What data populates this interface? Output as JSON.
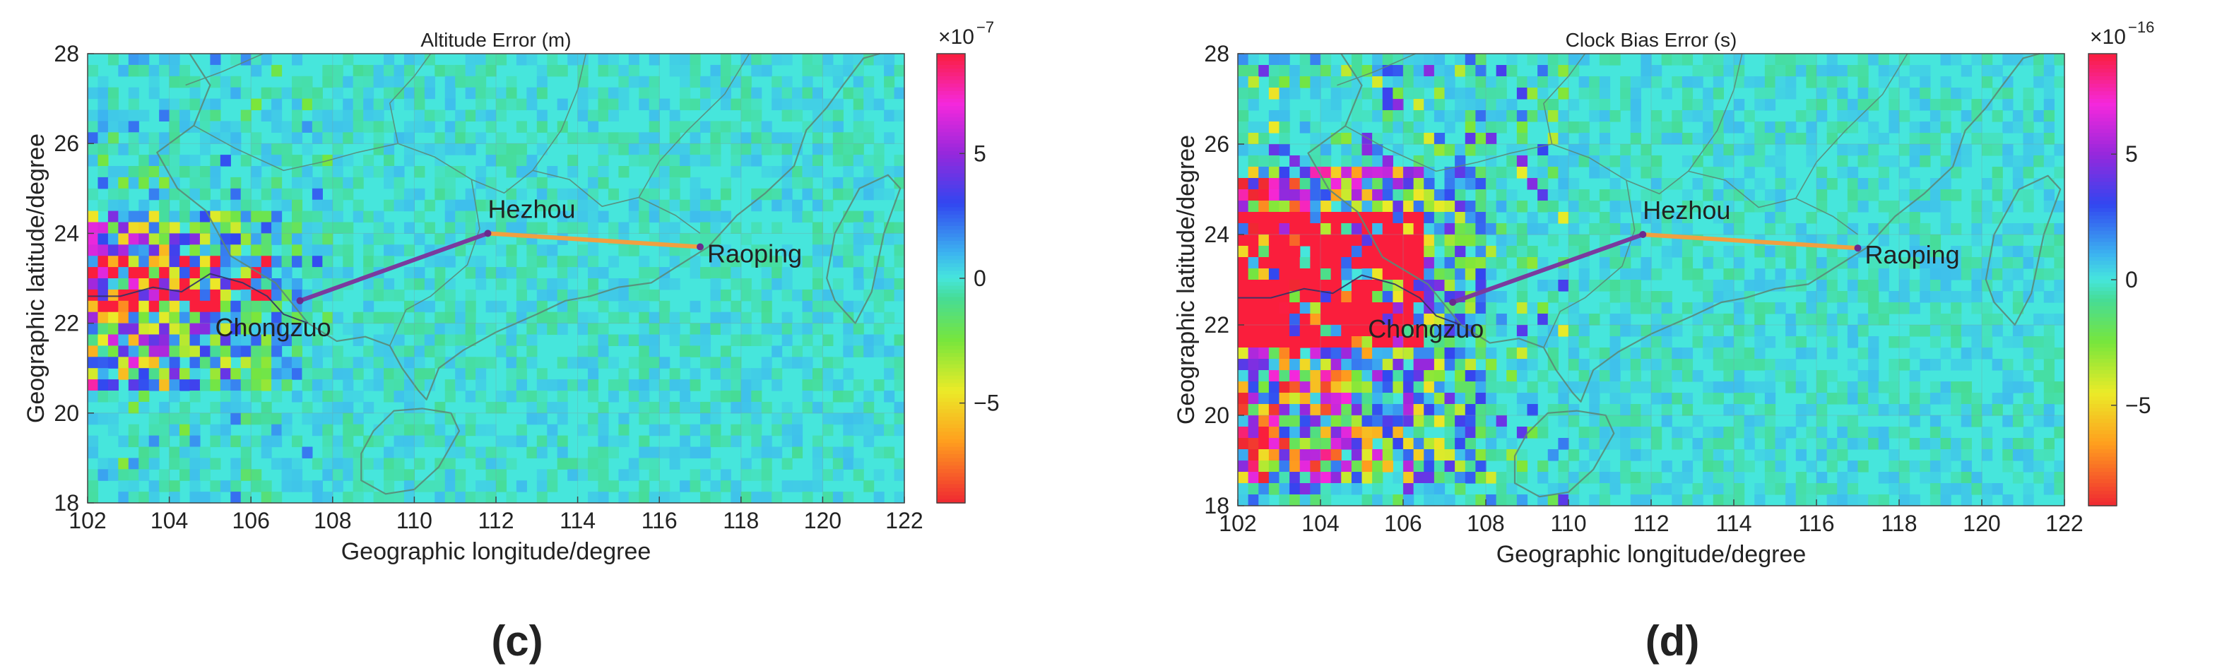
{
  "chart_data": [
    {
      "type": "heatmap",
      "panel_label": "(c)",
      "title": "Altitude Error (m)",
      "xlabel": "Geographic longitude/degree",
      "ylabel": "Geographic latitude/degree",
      "xlim": [
        102,
        122
      ],
      "ylim": [
        18,
        28
      ],
      "xticks": [
        102,
        104,
        106,
        108,
        110,
        112,
        114,
        116,
        118,
        120,
        122
      ],
      "yticks": [
        18,
        20,
        22,
        24,
        26,
        28
      ],
      "grid": true,
      "colorbar": {
        "exponent_label": "×10",
        "exponent_power": "−7",
        "range": [
          -9,
          9
        ],
        "ticks": [
          -5,
          0,
          5
        ],
        "tick_labels": [
          "−5",
          "0",
          "5"
        ]
      },
      "baseline_color": "#46e6dc",
      "high_error_region": {
        "lon": [
          102,
          107.2
        ],
        "lat": [
          20.5,
          24.5
        ],
        "level": "moderate"
      },
      "stations": [
        {
          "name": "Chongzuo",
          "lon": 107.2,
          "lat": 22.5
        },
        {
          "name": "Hezhou",
          "lon": 111.8,
          "lat": 24.0
        },
        {
          "name": "Raoping",
          "lon": 117.0,
          "lat": 23.7
        }
      ],
      "links": [
        {
          "from": "Chongzuo",
          "to": "Hezhou",
          "color": "#7a3a9e"
        },
        {
          "from": "Hezhou",
          "to": "Raoping",
          "color": "#f0a040"
        }
      ]
    },
    {
      "type": "heatmap",
      "panel_label": "(d)",
      "title": "Clock Bias Error (s)",
      "xlabel": "Geographic longitude/degree",
      "ylabel": "Geographic latitude/degree",
      "xlim": [
        102,
        122
      ],
      "ylim": [
        18,
        28
      ],
      "xticks": [
        102,
        104,
        106,
        108,
        110,
        112,
        114,
        116,
        118,
        120,
        122
      ],
      "yticks": [
        18,
        20,
        22,
        24,
        26,
        28
      ],
      "grid": true,
      "colorbar": {
        "exponent_label": "×10",
        "exponent_power": "−16",
        "range": [
          -9,
          9
        ],
        "ticks": [
          -5,
          0,
          5
        ],
        "tick_labels": [
          "−5",
          "0",
          "5"
        ]
      },
      "baseline_color": "#46e6dc",
      "high_error_region": {
        "lon": [
          102,
          108
        ],
        "lat": [
          18.5,
          25.5
        ],
        "level": "high"
      },
      "stations": [
        {
          "name": "Chongzuo",
          "lon": 107.2,
          "lat": 22.5
        },
        {
          "name": "Hezhou",
          "lon": 111.8,
          "lat": 24.0
        },
        {
          "name": "Raoping",
          "lon": 117.0,
          "lat": 23.7
        }
      ],
      "links": [
        {
          "from": "Chongzuo",
          "to": "Hezhou",
          "color": "#7a3a9e"
        },
        {
          "from": "Hezhou",
          "to": "Raoping",
          "color": "#f0a040"
        }
      ]
    }
  ]
}
